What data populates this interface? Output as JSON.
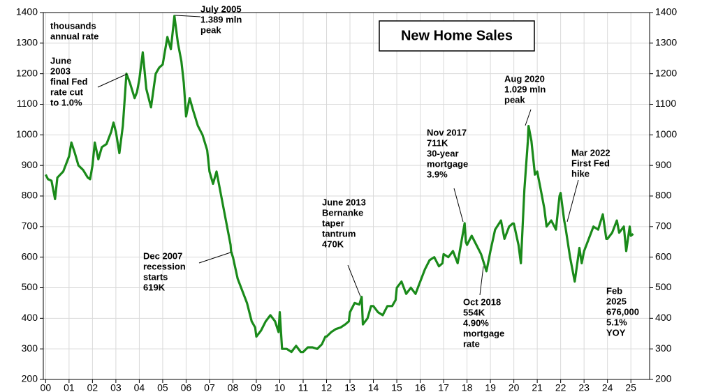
{
  "chart_data": {
    "type": "line",
    "title": "New Home Sales",
    "annotations": [
      [
        "thousands",
        "annual rate"
      ],
      [
        "June",
        "2003",
        "final Fed",
        "rate cut",
        "to 1.0%"
      ],
      [
        "July 2005",
        "1.389 mln",
        "peak"
      ],
      [
        "Dec 2007",
        "recession",
        "starts",
        "619K"
      ],
      [
        "June 2013",
        "Bernanke",
        "taper",
        "tantrum",
        "470K"
      ],
      [
        "Nov 2017",
        "711K",
        "30-year",
        "mortgage",
        "3.9%"
      ],
      [
        "Oct 2018",
        "554K",
        "4.90%",
        "mortgage",
        "rate"
      ],
      [
        "Aug 2020",
        "1.029 mln",
        "peak"
      ],
      [
        "Mar 2022",
        "First Fed",
        "hike"
      ],
      [
        "Feb",
        "2025",
        "676,000",
        "5.1%",
        "YOY"
      ]
    ],
    "x": [
      0,
      0.1,
      0.25,
      0.4,
      0.5,
      0.75,
      1.0,
      1.1,
      1.25,
      1.4,
      1.6,
      1.8,
      1.9,
      2.0,
      2.1,
      2.25,
      2.4,
      2.6,
      2.8,
      2.9,
      3.0,
      3.15,
      3.3,
      3.45,
      3.6,
      3.8,
      3.9,
      4.0,
      4.15,
      4.3,
      4.5,
      4.7,
      4.85,
      5.0,
      5.2,
      5.35,
      5.5,
      5.65,
      5.8,
      5.9,
      6.0,
      6.15,
      6.3,
      6.5,
      6.7,
      6.9,
      7.0,
      7.15,
      7.3,
      7.5,
      7.7,
      7.9,
      7.92,
      8.0,
      8.2,
      8.4,
      8.6,
      8.8,
      8.95,
      9.0,
      9.2,
      9.4,
      9.6,
      9.8,
      9.95,
      10.0,
      10.1,
      10.3,
      10.5,
      10.7,
      10.9,
      11.0,
      11.2,
      11.4,
      11.6,
      11.8,
      11.95,
      12.0,
      12.2,
      12.4,
      12.6,
      12.8,
      12.95,
      13.0,
      13.2,
      13.4,
      13.5,
      13.55,
      13.75,
      13.9,
      14.0,
      14.2,
      14.4,
      14.6,
      14.8,
      14.95,
      15.0,
      15.2,
      15.4,
      15.6,
      15.8,
      15.95,
      16.0,
      16.2,
      16.4,
      16.6,
      16.8,
      16.95,
      17.0,
      17.2,
      17.4,
      17.6,
      17.9,
      17.95,
      18.0,
      18.2,
      18.4,
      18.6,
      18.83,
      18.95,
      19.0,
      19.2,
      19.45,
      19.6,
      19.8,
      19.95,
      20.0,
      20.2,
      20.3,
      20.45,
      20.6,
      20.63,
      20.75,
      20.9,
      21.0,
      21.15,
      21.3,
      21.4,
      21.6,
      21.8,
      21.95,
      22.0,
      22.15,
      22.2,
      22.4,
      22.6,
      22.8,
      22.9,
      23.0,
      23.2,
      23.4,
      23.6,
      23.8,
      23.95,
      24.0,
      24.2,
      24.4,
      24.5,
      24.7,
      24.8,
      24.95,
      25.0,
      25.1
    ],
    "series": [
      {
        "name": "New Home Sales",
        "color": "#1a8a1a",
        "values": [
          870,
          855,
          850,
          790,
          860,
          880,
          930,
          975,
          940,
          900,
          885,
          860,
          855,
          900,
          975,
          920,
          960,
          970,
          1010,
          1040,
          1010,
          940,
          1030,
          1200,
          1170,
          1120,
          1140,
          1180,
          1270,
          1150,
          1090,
          1200,
          1220,
          1230,
          1320,
          1280,
          1389,
          1300,
          1240,
          1170,
          1060,
          1120,
          1080,
          1030,
          1000,
          950,
          880,
          840,
          880,
          800,
          720,
          640,
          619,
          600,
          530,
          490,
          450,
          390,
          370,
          340,
          360,
          390,
          410,
          390,
          355,
          420,
          300,
          300,
          290,
          310,
          290,
          290,
          305,
          305,
          300,
          315,
          340,
          340,
          355,
          365,
          370,
          380,
          390,
          420,
          450,
          445,
          470,
          380,
          400,
          440,
          440,
          420,
          410,
          440,
          440,
          460,
          500,
          520,
          480,
          500,
          480,
          510,
          520,
          560,
          590,
          600,
          570,
          580,
          610,
          600,
          620,
          580,
          711,
          650,
          640,
          670,
          640,
          610,
          554,
          600,
          620,
          690,
          720,
          660,
          700,
          710,
          710,
          640,
          580,
          820,
          980,
          1029,
          980,
          870,
          880,
          820,
          760,
          700,
          720,
          690,
          800,
          810,
          720,
          700,
          600,
          520,
          630,
          580,
          620,
          660,
          700,
          690,
          740,
          660,
          660,
          680,
          720,
          680,
          700,
          620,
          700,
          670,
          676
        ]
      }
    ],
    "xlim": [
      -0.1,
      25.8
    ],
    "xticks": [
      {
        "value": 0,
        "label": "00"
      },
      {
        "value": 1,
        "label": "01"
      },
      {
        "value": 2,
        "label": "02"
      },
      {
        "value": 3,
        "label": "03"
      },
      {
        "value": 4,
        "label": "04"
      },
      {
        "value": 5,
        "label": "05"
      },
      {
        "value": 6,
        "label": "06"
      },
      {
        "value": 7,
        "label": "07"
      },
      {
        "value": 8,
        "label": "08"
      },
      {
        "value": 9,
        "label": "09"
      },
      10,
      11,
      12,
      13,
      14,
      15,
      16,
      17,
      18,
      19,
      20,
      21,
      22,
      23,
      24,
      25
    ],
    "ylim": [
      200,
      1400
    ],
    "yticks": [
      200,
      300,
      400,
      500,
      600,
      700,
      800,
      900,
      1000,
      1100,
      1200,
      1300,
      1400
    ],
    "y2lim": [
      200,
      1400
    ],
    "y2ticks": [
      200,
      300,
      400,
      500,
      600,
      700,
      800,
      900,
      1000,
      1100,
      1200,
      1300,
      1400
    ],
    "grid": true
  }
}
